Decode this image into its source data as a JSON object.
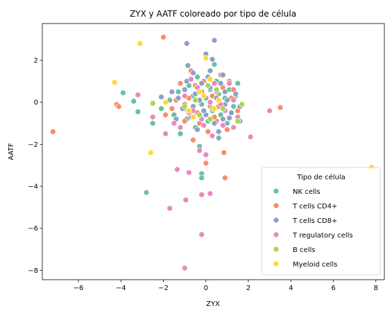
{
  "chart_data": {
    "type": "scatter",
    "title": "ZYX y AATF coloreado por tipo de célula",
    "xlabel": "ZYX",
    "ylabel": "AATF",
    "xlim": [
      -7.7,
      8.4
    ],
    "ylim": [
      -8.45,
      3.75
    ],
    "xticks": [
      -6,
      -4,
      -2,
      0,
      2,
      4,
      6,
      8
    ],
    "yticks": [
      -8,
      -6,
      -4,
      -2,
      0,
      2
    ],
    "grid": false,
    "legend": {
      "title": "Tipo de célula",
      "position": "lower-right"
    },
    "series": [
      {
        "name": "NK cells",
        "color": "#66c2a5",
        "points": [
          [
            -3.9,
            0.45
          ],
          [
            -3.4,
            0.05
          ],
          [
            -3.2,
            -0.45
          ],
          [
            -2.5,
            -1.0
          ],
          [
            -2.8,
            -4.3
          ],
          [
            -0.2,
            -3.4
          ],
          [
            -0.2,
            -3.6
          ],
          [
            1.6,
            -0.9
          ],
          [
            -1.5,
            -0.6
          ],
          [
            -1.2,
            -1.5
          ],
          [
            -0.8,
            0.8
          ],
          [
            -0.5,
            -1.2
          ],
          [
            0.1,
            -0.9
          ],
          [
            0.5,
            1.0
          ],
          [
            0.6,
            -1.7
          ],
          [
            1.1,
            0.6
          ],
          [
            -1.0,
            -0.3
          ],
          [
            0.9,
            0.2
          ],
          [
            0.3,
            -0.4
          ],
          [
            -0.6,
            0.3
          ],
          [
            1.4,
            0.3
          ],
          [
            -1.7,
            0.1
          ],
          [
            0.4,
            1.8
          ],
          [
            -0.3,
            -2.1
          ],
          [
            0.7,
            -0.6
          ],
          [
            1.3,
            -0.2
          ],
          [
            -1.3,
            0.5
          ],
          [
            0.0,
            0.2
          ],
          [
            -0.9,
            -0.8
          ],
          [
            0.2,
            0.6
          ],
          [
            -0.4,
            1.2
          ],
          [
            1.0,
            -1.0
          ],
          [
            -2.1,
            -0.3
          ],
          [
            0.6,
            0.4
          ],
          [
            -0.2,
            -0.1
          ],
          [
            1.5,
            0.9
          ]
        ]
      },
      {
        "name": "T cells CD4+",
        "color": "#fc8d62",
        "points": [
          [
            -7.2,
            -1.4
          ],
          [
            -4.3,
            0.95
          ],
          [
            -4.2,
            -0.1
          ],
          [
            -4.1,
            -0.2
          ],
          [
            -2.0,
            3.1
          ],
          [
            3.5,
            -0.25
          ],
          [
            0.85,
            -2.4
          ],
          [
            0.9,
            -3.6
          ],
          [
            -0.7,
            1.5
          ],
          [
            -1.0,
            -0.9
          ],
          [
            0.0,
            -2.9
          ],
          [
            1.2,
            0.2
          ],
          [
            -0.3,
            -1.0
          ],
          [
            0.8,
            0.7
          ],
          [
            -1.4,
            0.1
          ],
          [
            0.5,
            -0.9
          ],
          [
            -0.1,
            1.0
          ],
          [
            1.5,
            -0.4
          ],
          [
            -1.9,
            -0.6
          ],
          [
            0.3,
            0.3
          ],
          [
            -0.6,
            -1.8
          ],
          [
            0.7,
            1.3
          ],
          [
            1.0,
            -1.3
          ],
          [
            -1.2,
            0.9
          ],
          [
            0.2,
            -0.2
          ],
          [
            -0.8,
            0.2
          ],
          [
            1.3,
            0.6
          ],
          [
            -0.4,
            -0.5
          ],
          [
            0.6,
            -0.2
          ],
          [
            -1.6,
            -0.3
          ],
          [
            0.1,
            -1.4
          ],
          [
            -0.2,
            0.5
          ],
          [
            1.1,
            1.0
          ],
          [
            -1.0,
            -0.1
          ],
          [
            0.4,
            -0.7
          ],
          [
            -0.5,
            0.8
          ]
        ]
      },
      {
        "name": "T cells CD8+",
        "color": "#8da0cb",
        "points": [
          [
            -0.9,
            2.8
          ],
          [
            0.4,
            2.95
          ],
          [
            0.0,
            2.3
          ],
          [
            0.3,
            2.05
          ],
          [
            -0.85,
            1.75
          ],
          [
            0.8,
            1.3
          ],
          [
            -0.6,
            1.4
          ],
          [
            1.1,
            -0.75
          ],
          [
            -1.3,
            0.2
          ],
          [
            0.2,
            1.5
          ],
          [
            -0.4,
            -1.3
          ],
          [
            0.9,
            -0.1
          ],
          [
            -1.0,
            0.6
          ],
          [
            0.5,
            0.2
          ],
          [
            -0.2,
            0.9
          ],
          [
            1.4,
            0.4
          ],
          [
            -1.6,
            0.5
          ],
          [
            0.0,
            -0.6
          ],
          [
            0.7,
            0.9
          ],
          [
            -0.7,
            -0.7
          ],
          [
            1.2,
            -0.5
          ],
          [
            -0.3,
            0.1
          ],
          [
            0.4,
            -1.0
          ],
          [
            -1.1,
            -0.3
          ],
          [
            0.1,
            1.2
          ],
          [
            0.9,
            0.5
          ],
          [
            -0.5,
            0.4
          ],
          [
            1.6,
            -0.2
          ],
          [
            -0.9,
            1.0
          ],
          [
            0.3,
            -0.3
          ],
          [
            -2.1,
            0.25
          ],
          [
            0.6,
            -1.4
          ],
          [
            -0.1,
            -0.4
          ],
          [
            0.8,
            -0.8
          ],
          [
            -1.4,
            -0.8
          ],
          [
            0.2,
            0.7
          ],
          [
            -0.6,
            -0.2
          ],
          [
            1.0,
            0.1
          ]
        ]
      },
      {
        "name": "T regulatory cells",
        "color": "#e78ac3",
        "points": [
          [
            -3.2,
            0.35
          ],
          [
            -1.9,
            -1.5
          ],
          [
            -2.5,
            -0.7
          ],
          [
            -1.35,
            -3.2
          ],
          [
            -0.8,
            -3.35
          ],
          [
            -1.7,
            -5.05
          ],
          [
            -0.95,
            -4.65
          ],
          [
            -0.2,
            -4.4
          ],
          [
            0.2,
            -4.35
          ],
          [
            -0.2,
            -6.3
          ],
          [
            -1.0,
            -7.9
          ],
          [
            3.0,
            -0.4
          ],
          [
            2.1,
            -1.65
          ],
          [
            1.3,
            -1.2
          ],
          [
            0.0,
            -2.5
          ],
          [
            -0.3,
            -2.3
          ],
          [
            0.9,
            -0.4
          ],
          [
            -1.2,
            -1.2
          ],
          [
            0.5,
            0.5
          ],
          [
            -0.6,
            -0.4
          ],
          [
            1.1,
            0.9
          ],
          [
            -0.1,
            -1.1
          ],
          [
            0.7,
            -0.1
          ],
          [
            -1.0,
            0.3
          ],
          [
            0.3,
            -1.6
          ],
          [
            -0.4,
            0.7
          ],
          [
            1.5,
            -0.7
          ],
          [
            -1.5,
            -1.0
          ],
          [
            0.2,
            0.0
          ],
          [
            -0.7,
            1.1
          ],
          [
            0.8,
            -1.1
          ],
          [
            -0.2,
            -0.8
          ],
          [
            1.3,
            0.1
          ],
          [
            -0.8,
            -0.5
          ],
          [
            0.4,
            0.9
          ]
        ]
      },
      {
        "name": "B cells",
        "color": "#a6d854",
        "points": [
          [
            -2.5,
            -0.05
          ],
          [
            0.1,
            0.8
          ],
          [
            0.3,
            -0.3
          ],
          [
            -0.5,
            0.1
          ],
          [
            1.7,
            -0.1
          ],
          [
            0.8,
            -0.3
          ],
          [
            -0.3,
            -0.6
          ],
          [
            0.5,
            0.6
          ],
          [
            -1.0,
            -0.2
          ],
          [
            0.2,
            -0.8
          ],
          [
            1.5,
            -0.9
          ]
        ]
      },
      {
        "name": "Myeloid cells",
        "color": "#ffd92f",
        "points": [
          [
            -3.1,
            2.8
          ],
          [
            -4.3,
            0.95
          ],
          [
            -2.6,
            -2.4
          ],
          [
            7.8,
            -3.1
          ],
          [
            -1.9,
            0.0
          ],
          [
            0.0,
            2.1
          ],
          [
            -0.3,
            0.5
          ],
          [
            -0.1,
            0.3
          ],
          [
            0.4,
            -0.3
          ],
          [
            -0.8,
            -0.4
          ],
          [
            0.6,
            0.1
          ],
          [
            -0.6,
            -0.7
          ],
          [
            0.2,
            1.1
          ]
        ]
      }
    ]
  }
}
